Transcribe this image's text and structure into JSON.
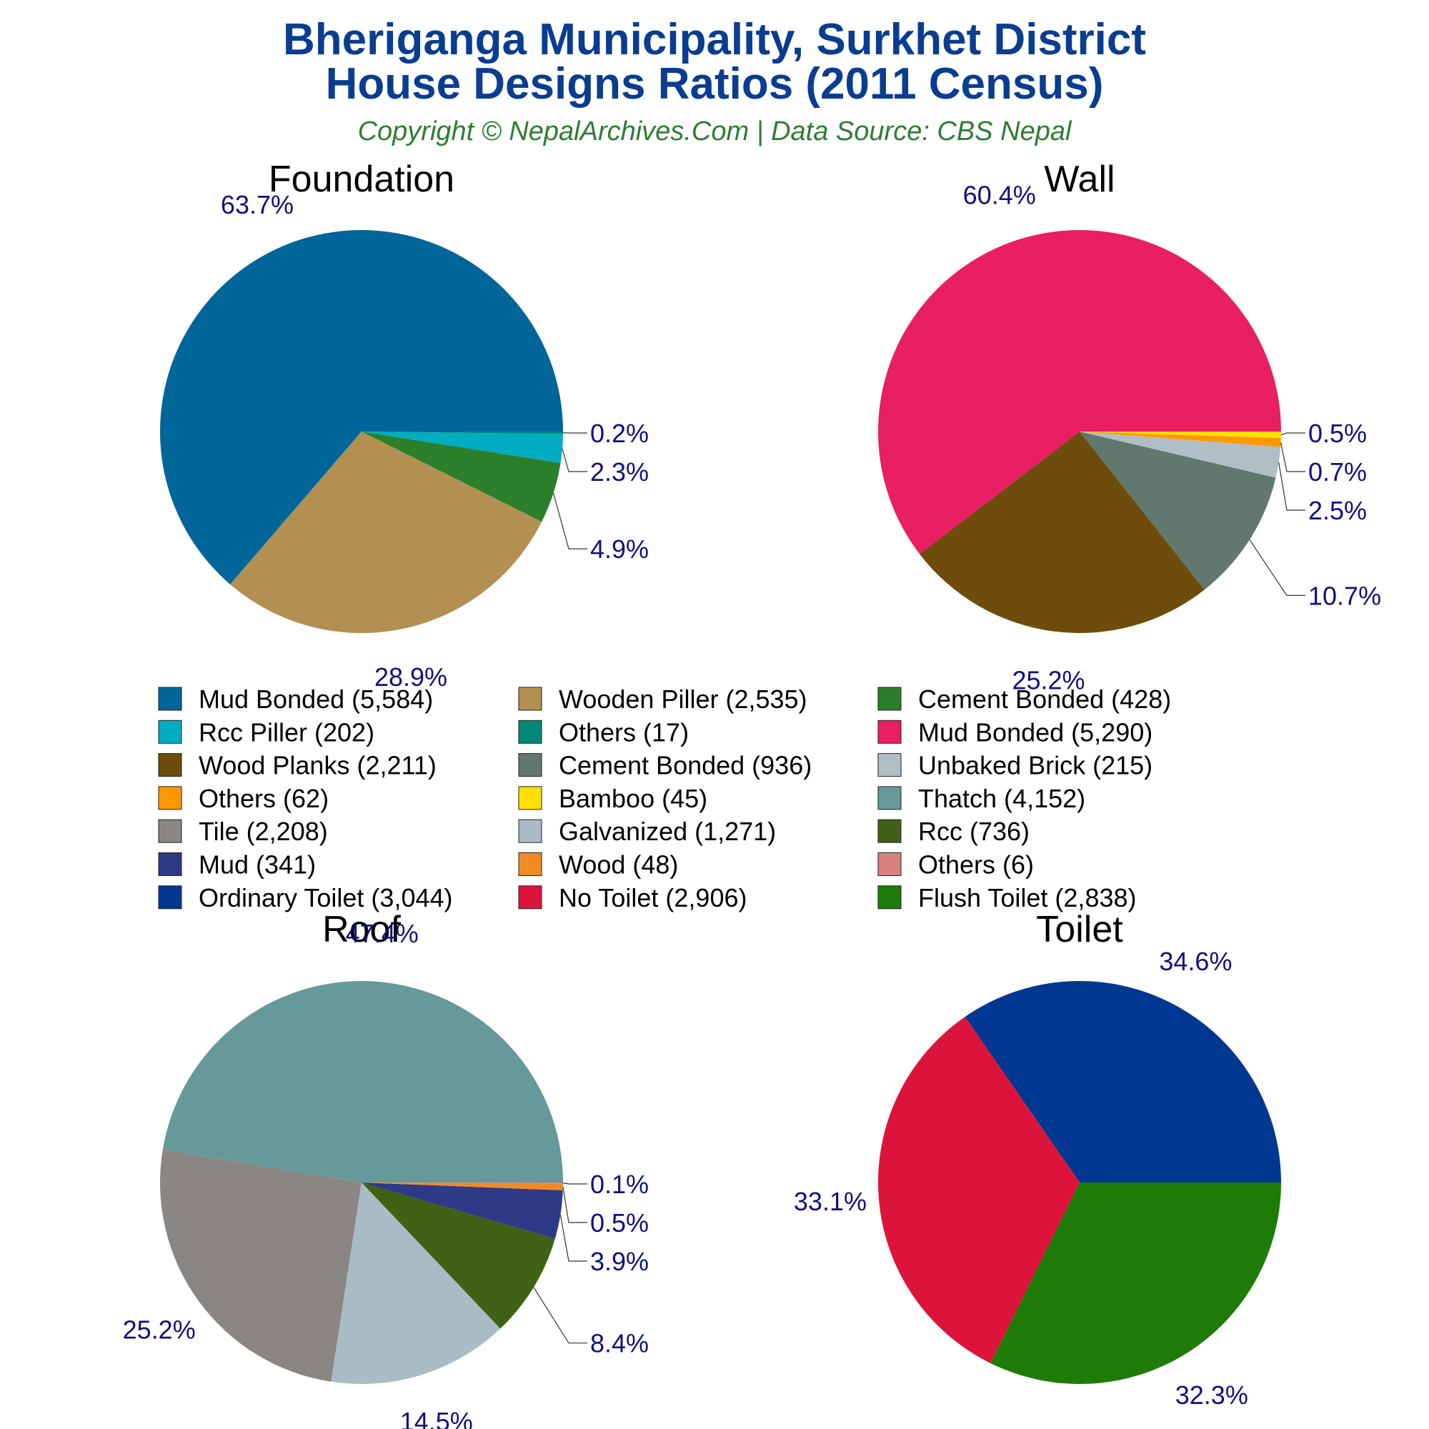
{
  "header": {
    "title_line1": "Bheriganga Municipality, Surkhet District",
    "title_line2": "House Designs Ratios (2011 Census)",
    "subtitle": "Copyright © NepalArchives.Com | Data Source: CBS Nepal"
  },
  "chart_data": [
    {
      "type": "pie",
      "title": "Foundation",
      "labels": [
        "Mud Bonded (5,584)",
        "Wooden Piller (2,535)",
        "Cement Bonded (428)",
        "Rcc Piller (202)",
        "Others (17)"
      ],
      "values": [
        5584,
        2535,
        428,
        202,
        17
      ],
      "percent_labels": [
        "63.7%",
        "28.9%",
        "4.9%",
        "2.3%",
        "0.2%"
      ],
      "colors": [
        "#006699",
        "#b38f52",
        "#2b7f2b",
        "#00acc1",
        "#00897b"
      ]
    },
    {
      "type": "pie",
      "title": "Wall",
      "labels": [
        "Mud Bonded (5,290)",
        "Wood Planks (2,211)",
        "Cement Bonded (936)",
        "Unbaked Brick (215)",
        "Others (62)",
        "Bamboo (45)"
      ],
      "values": [
        5290,
        2211,
        936,
        215,
        62,
        45
      ],
      "percent_labels": [
        "60.4%",
        "25.2%",
        "10.7%",
        "2.5%",
        "0.7%",
        "0.5%"
      ],
      "colors": [
        "#e91e63",
        "#6d4c0c",
        "#62786e",
        "#b0bec5",
        "#ff9800",
        "#ffe000"
      ]
    },
    {
      "type": "pie",
      "title": "Roof",
      "labels": [
        "Thatch (4,152)",
        "Tile (2,208)",
        "Galvanized (1,271)",
        "Rcc (736)",
        "Mud (341)",
        "Wood (48)",
        "Others (6)"
      ],
      "values": [
        4152,
        2208,
        1271,
        736,
        341,
        48,
        6
      ],
      "percent_labels": [
        "47.4%",
        "25.2%",
        "14.5%",
        "8.4%",
        "3.9%",
        "0.5%",
        "0.1%"
      ],
      "colors": [
        "#669999",
        "#8a8683",
        "#a9bcc5",
        "#3f6214",
        "#2e3a87",
        "#f28a24",
        "#d98080"
      ]
    },
    {
      "type": "pie",
      "title": "Toilet",
      "labels": [
        "Ordinary Toilet (3,044)",
        "No Toilet (2,906)",
        "Flush Toilet (2,838)"
      ],
      "values": [
        3044,
        2906,
        2838
      ],
      "percent_labels": [
        "34.6%",
        "33.1%",
        "32.3%"
      ],
      "colors": [
        "#003891",
        "#dc143c",
        "#1e7b07"
      ]
    }
  ],
  "legend": {
    "items": [
      {
        "label": "Mud Bonded (5,584)",
        "color": "#006699"
      },
      {
        "label": "Wooden Piller (2,535)",
        "color": "#b38f52"
      },
      {
        "label": "Cement Bonded (428)",
        "color": "#2b7f2b"
      },
      {
        "label": "Rcc Piller (202)",
        "color": "#00acc1"
      },
      {
        "label": "Others (17)",
        "color": "#00897b"
      },
      {
        "label": "Mud Bonded (5,290)",
        "color": "#e91e63"
      },
      {
        "label": "Wood Planks (2,211)",
        "color": "#6d4c0c"
      },
      {
        "label": "Cement Bonded (936)",
        "color": "#62786e"
      },
      {
        "label": "Unbaked Brick (215)",
        "color": "#b0bec5"
      },
      {
        "label": "Others (62)",
        "color": "#ff9800"
      },
      {
        "label": "Bamboo (45)",
        "color": "#ffe000"
      },
      {
        "label": "Thatch (4,152)",
        "color": "#669999"
      },
      {
        "label": "Tile (2,208)",
        "color": "#8a8683"
      },
      {
        "label": "Galvanized (1,271)",
        "color": "#a9bcc5"
      },
      {
        "label": "Rcc (736)",
        "color": "#3f6214"
      },
      {
        "label": "Mud (341)",
        "color": "#2e3a87"
      },
      {
        "label": "Wood (48)",
        "color": "#f28a24"
      },
      {
        "label": "Others (6)",
        "color": "#d98080"
      },
      {
        "label": "Ordinary Toilet (3,044)",
        "color": "#003891"
      },
      {
        "label": "No Toilet (2,906)",
        "color": "#dc143c"
      },
      {
        "label": "Flush Toilet (2,838)",
        "color": "#1e7b07"
      }
    ]
  }
}
